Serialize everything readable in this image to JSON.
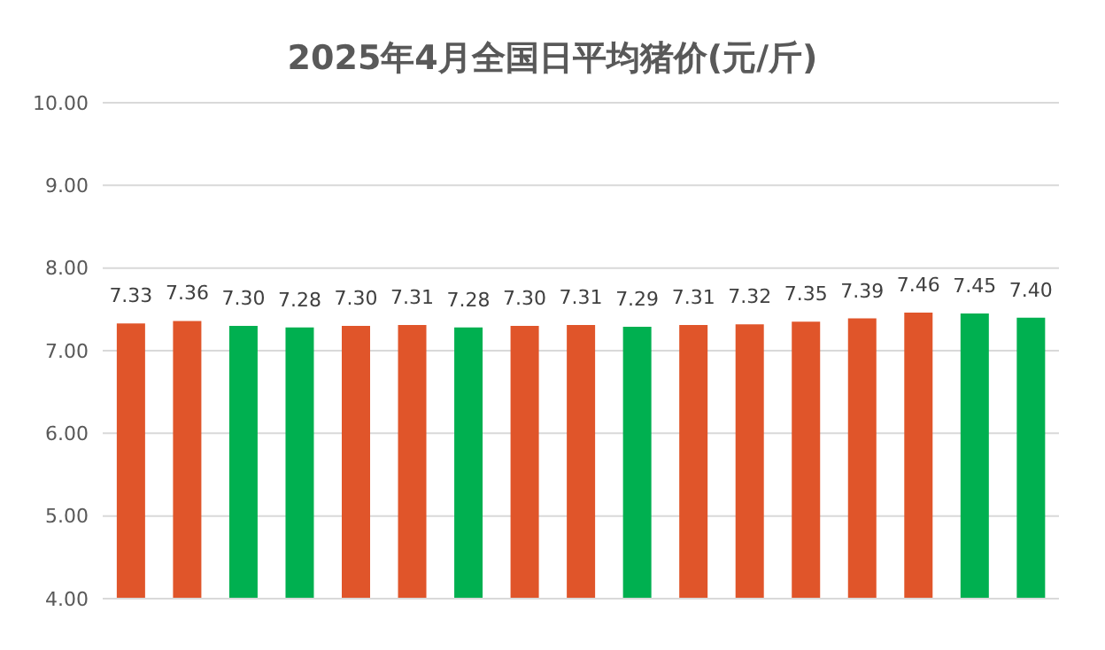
{
  "chart_data": {
    "type": "bar",
    "title": "2025年4月全国日平均猪价(元/斤)",
    "categories": [
      null,
      null,
      null,
      null,
      null,
      null,
      null,
      null,
      null,
      null,
      null,
      null,
      null,
      null,
      null,
      null,
      null
    ],
    "values": [
      7.33,
      7.36,
      7.3,
      7.28,
      7.3,
      7.31,
      7.28,
      7.3,
      7.31,
      7.29,
      7.31,
      7.32,
      7.35,
      7.39,
      7.46,
      7.45,
      7.4
    ],
    "value_labels": [
      "7.33",
      "7.36",
      "7.30",
      "7.28",
      "7.30",
      "7.31",
      "7.28",
      "7.30",
      "7.31",
      "7.29",
      "7.31",
      "7.32",
      "7.35",
      "7.39",
      "7.46",
      "7.45",
      "7.40"
    ],
    "colors": [
      "#e0552a",
      "#e0552a",
      "#00b050",
      "#00b050",
      "#e0552a",
      "#e0552a",
      "#00b050",
      "#e0552a",
      "#e0552a",
      "#00b050",
      "#e0552a",
      "#e0552a",
      "#e0552a",
      "#e0552a",
      "#e0552a",
      "#00b050",
      "#00b050"
    ],
    "ylim": [
      4,
      10
    ],
    "yticks": [
      {
        "value": 4,
        "label": "4.00"
      },
      {
        "value": 5,
        "label": "5.00"
      },
      {
        "value": 6,
        "label": "6.00"
      },
      {
        "value": 7,
        "label": "7.00"
      },
      {
        "value": 8,
        "label": "8.00"
      },
      {
        "value": 9,
        "label": "9.00"
      },
      {
        "value": 10,
        "label": "10.00"
      }
    ],
    "grid": "y"
  }
}
